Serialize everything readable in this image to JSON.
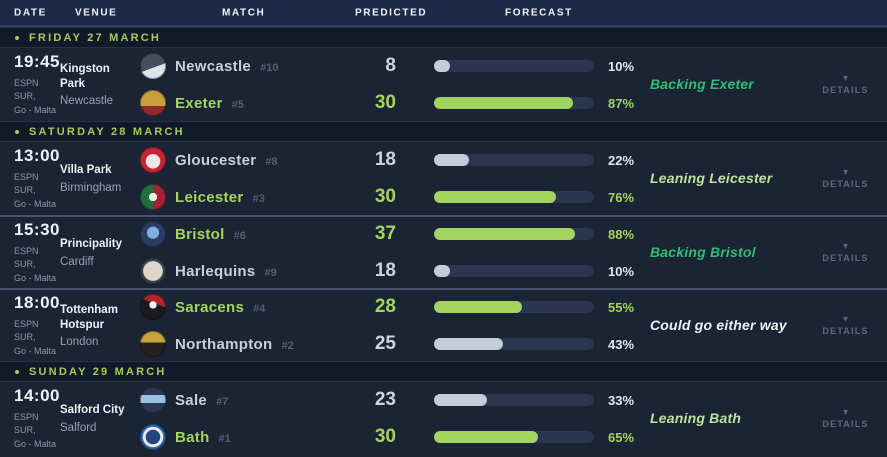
{
  "table_header": {
    "columns": [
      "DATE",
      "VENUE",
      "MATCH",
      "PREDICTED",
      "FORECAST"
    ]
  },
  "details_label": "DETAILS",
  "accent_colors": {
    "lime": "#a3d55e",
    "backing_green": "#2fbe70",
    "leaning_green": "#bbe29d",
    "bar_track": "#2a3650",
    "bar_grey": "#c3cdd9"
  },
  "groups": [
    {
      "date_label": "FRIDAY 27 MARCH",
      "matches": [
        {
          "time": "19:45",
          "channel": [
            "ESPN SUR,",
            "Go - Malta"
          ],
          "venue_name": "Kingston Park",
          "venue_city": "Newcastle",
          "teams": [
            {
              "name": "Newcastle",
              "rank": "#10",
              "score": "8",
              "forecast_pct": 10,
              "winner": false,
              "logo": "newcastle-falcons-logo",
              "logo_bg": "linear-gradient(160deg,#454d5e 55%,#dfe4ea 55%)"
            },
            {
              "name": "Exeter",
              "rank": "#5",
              "score": "30",
              "forecast_pct": 87,
              "winner": true,
              "logo": "exeter-chiefs-logo",
              "logo_bg": "linear-gradient(180deg,#c9a03e 62%,#8f2a2e 62%)"
            }
          ],
          "comment": {
            "text": "Backing Exeter",
            "tone": "backing"
          }
        }
      ]
    },
    {
      "date_label": "SATURDAY 28 MARCH",
      "matches": [
        {
          "time": "13:00",
          "channel": [
            "ESPN SUR,",
            "Go - Malta"
          ],
          "venue_name": "Villa Park",
          "venue_city": "Birmingham",
          "teams": [
            {
              "name": "Gloucester",
              "rank": "#8",
              "score": "18",
              "forecast_pct": 22,
              "winner": false,
              "logo": "gloucester-rugby-logo",
              "logo_bg": "radial-gradient(circle at 50% 55%, #f1e8e1 0 36%, #c52434 39%)"
            },
            {
              "name": "Leicester",
              "rank": "#3",
              "score": "30",
              "forecast_pct": 76,
              "winner": true,
              "logo": "leicester-tigers-logo",
              "logo_bg": "radial-gradient(circle at 50% 50%, #f4f0ea 0 22%, rgba(0,0,0,0) 23%), linear-gradient(90deg,#1f6f3d 50%,#a62233 50%)"
            }
          ],
          "comment": {
            "text": "Leaning Leicester",
            "tone": "leaning"
          }
        },
        {
          "time": "15:30",
          "channel": [
            "ESPN SUR,",
            "Go - Malta"
          ],
          "venue_name": "Principality",
          "venue_city": "Cardiff",
          "teams": [
            {
              "name": "Bristol",
              "rank": "#6",
              "score": "37",
              "forecast_pct": 88,
              "winner": true,
              "logo": "bristol-bears-logo",
              "logo_bg": "radial-gradient(circle at 50% 45%, #7fb0dc 0 30%, #2c3c66 33%)"
            },
            {
              "name": "Harlequins",
              "rank": "#9",
              "score": "18",
              "forecast_pct": 10,
              "winner": false,
              "logo": "harlequins-logo",
              "logo_bg": "radial-gradient(circle at 50% 50%, #ded6c6 0 52%, #3a4252 55%)"
            }
          ],
          "comment": {
            "text": "Backing Bristol",
            "tone": "backing"
          }
        },
        {
          "time": "18:00",
          "channel": [
            "ESPN SUR,",
            "Go - Malta"
          ],
          "venue_name": "Tottenham Hotspur",
          "venue_city": "London",
          "teams": [
            {
              "name": "Saracens",
              "rank": "#4",
              "score": "28",
              "forecast_pct": 55,
              "winner": true,
              "logo": "saracens-logo",
              "logo_bg": "radial-gradient(circle at 50% 42%, #f0f0f0 0 18%, rgba(0,0,0,0) 19%), linear-gradient(200deg,#b3242c 38%,#191b20 38%)"
            },
            {
              "name": "Northampton",
              "rank": "#2",
              "score": "25",
              "forecast_pct": 43,
              "winner": false,
              "logo": "northampton-saints-logo",
              "logo_bg": "linear-gradient(180deg,#caa53e 45%,#23221f 45%)"
            }
          ],
          "comment": {
            "text": "Could go either way",
            "tone": "neutral"
          }
        }
      ]
    },
    {
      "date_label": "SUNDAY 29 MARCH",
      "matches": [
        {
          "time": "14:00",
          "channel": [
            "ESPN SUR,",
            "Go - Malta"
          ],
          "venue_name": "Salford City",
          "venue_city": "Salford",
          "teams": [
            {
              "name": "Sale",
              "rank": "#7",
              "score": "23",
              "forecast_pct": 33,
              "winner": false,
              "logo": "sale-sharks-logo",
              "logo_bg": "linear-gradient(180deg,#2a3950 30%,#9cc3e4 30% 62%,#2a3950 62%)"
            },
            {
              "name": "Bath",
              "rank": "#1",
              "score": "30",
              "forecast_pct": 65,
              "winner": true,
              "logo": "bath-rugby-logo",
              "logo_bg": "radial-gradient(circle at 50% 50%, #27447e 0 38%, #e8ecf2 41% 54%, #2d66a8 57%)"
            }
          ],
          "comment": {
            "text": "Leaning Bath",
            "tone": "leaning"
          }
        }
      ]
    }
  ]
}
